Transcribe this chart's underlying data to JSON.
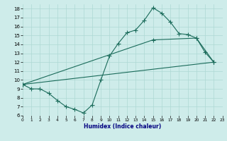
{
  "xlabel": "Humidex (Indice chaleur)",
  "xlim": [
    0,
    23
  ],
  "ylim": [
    6,
    18.5
  ],
  "xticks": [
    0,
    1,
    2,
    3,
    4,
    5,
    6,
    7,
    8,
    9,
    10,
    11,
    12,
    13,
    14,
    15,
    16,
    17,
    18,
    19,
    20,
    21,
    22,
    23
  ],
  "yticks": [
    6,
    7,
    8,
    9,
    10,
    11,
    12,
    13,
    14,
    15,
    16,
    17,
    18
  ],
  "bg_color": "#ceecea",
  "line_color": "#1a6b5a",
  "grid_color": "#aed8d4",
  "line1_x": [
    0,
    1,
    2,
    3,
    4,
    5,
    6,
    7,
    8,
    9,
    10,
    11,
    12,
    13,
    14,
    15,
    16,
    17,
    18,
    19,
    20,
    21,
    22
  ],
  "line1_y": [
    9.5,
    9.0,
    9.0,
    8.5,
    7.7,
    7.0,
    6.7,
    6.3,
    7.2,
    10.0,
    12.7,
    14.1,
    15.3,
    15.6,
    16.7,
    18.1,
    17.5,
    16.5,
    15.2,
    15.1,
    14.7,
    13.1,
    12.0
  ],
  "line2_x": [
    0,
    22
  ],
  "line2_y": [
    9.5,
    12.0
  ],
  "line3_x": [
    0,
    15,
    20,
    22
  ],
  "line3_y": [
    9.5,
    14.5,
    14.7,
    12.0
  ],
  "marker_size": 2.5,
  "line_width": 0.8
}
